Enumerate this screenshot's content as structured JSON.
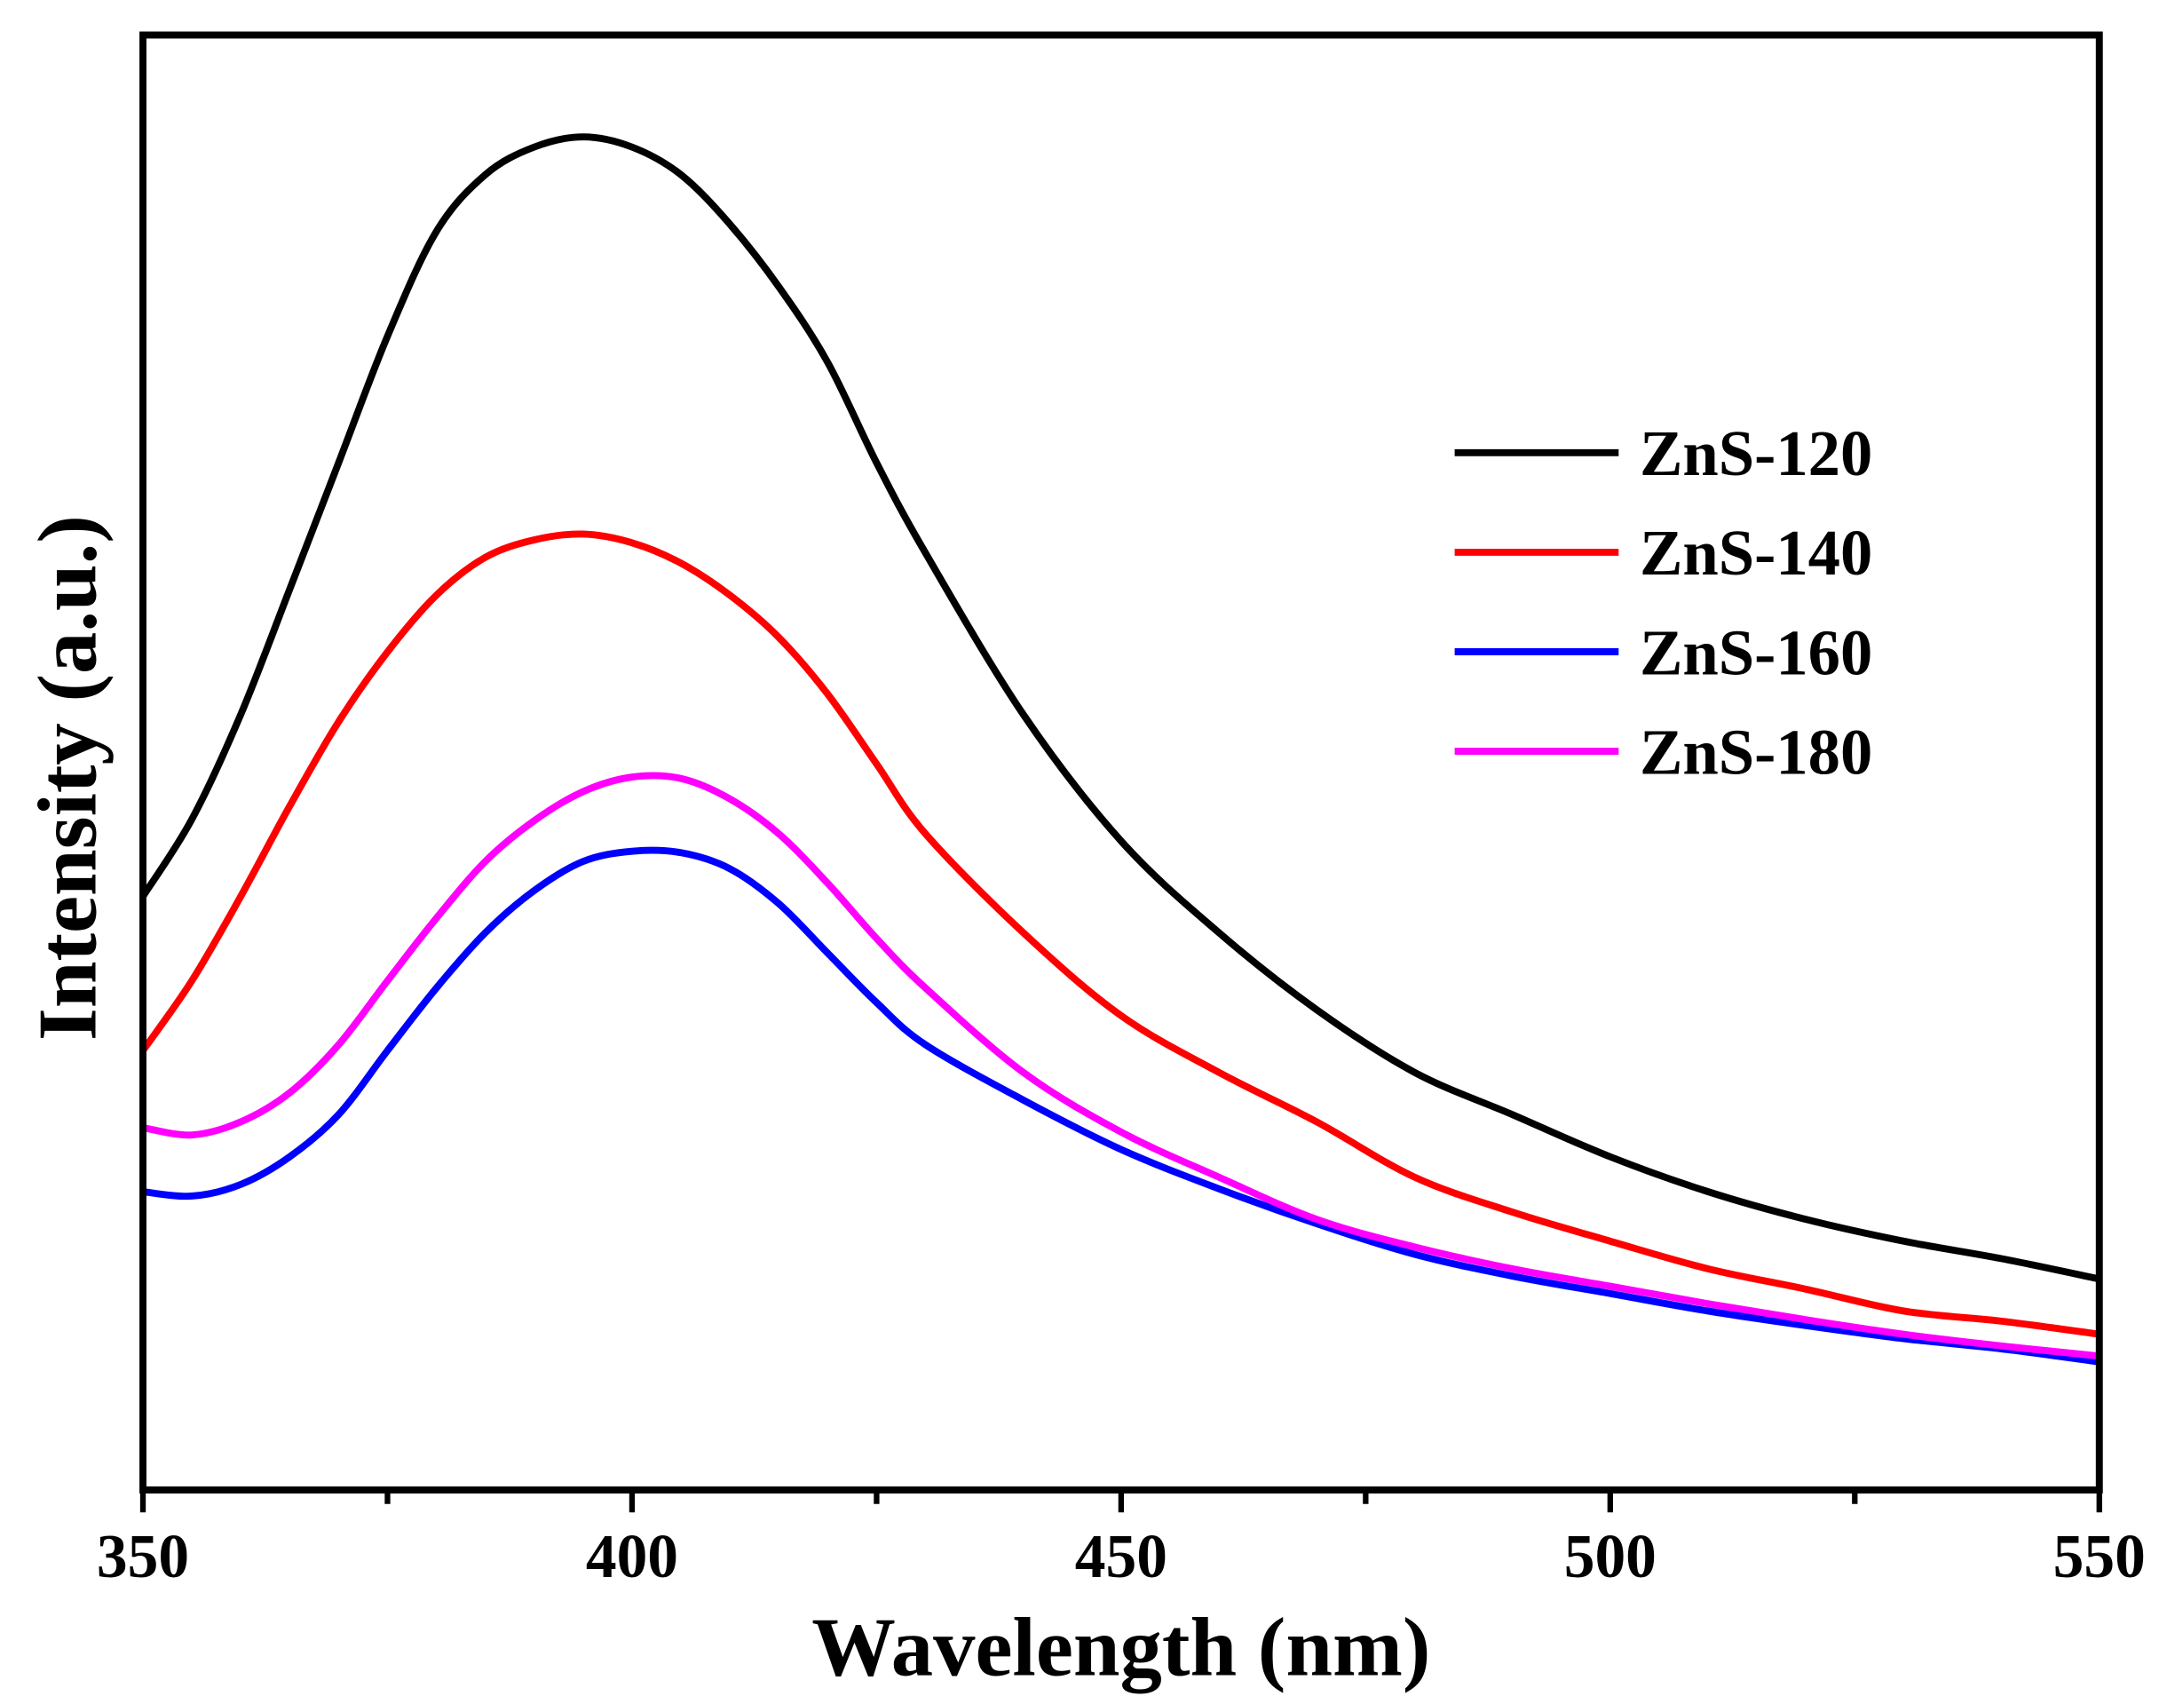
{
  "chart_data": {
    "type": "line",
    "title": "",
    "xlabel": "Wavelength (nm)",
    "ylabel": "Intensity (a.u.)",
    "xlim": [
      350,
      550
    ],
    "ylim": [
      0,
      100
    ],
    "xticks": [
      350,
      400,
      450,
      500,
      550
    ],
    "xminor_ticks": [
      375,
      425,
      475,
      525
    ],
    "grid": false,
    "legend_position": "top-right",
    "x": [
      350,
      355,
      360,
      365,
      370,
      375,
      380,
      385,
      390,
      395,
      400,
      405,
      410,
      415,
      420,
      425,
      430,
      440,
      450,
      460,
      470,
      480,
      490,
      500,
      510,
      520,
      530,
      540,
      550
    ],
    "series": [
      {
        "name": "ZnS-120",
        "color": "#000000",
        "values": [
          40.8,
          46.1,
          53.3,
          61.9,
          70.6,
          79.3,
          86.5,
          90.4,
          92.3,
          93.0,
          92.3,
          90.4,
          87.0,
          82.7,
          77.5,
          70.6,
          64.4,
          53.3,
          44.6,
          38.3,
          33.0,
          28.7,
          25.8,
          22.9,
          20.5,
          18.6,
          17.1,
          15.9,
          14.5
        ]
      },
      {
        "name": "ZnS-140",
        "color": "#ff0000",
        "values": [
          30.2,
          35.0,
          40.8,
          47.0,
          52.8,
          57.6,
          61.5,
          64.1,
          65.3,
          65.7,
          65.1,
          63.7,
          61.5,
          58.6,
          54.7,
          49.9,
          45.1,
          38.3,
          32.6,
          28.7,
          25.3,
          21.5,
          19.1,
          17.1,
          15.2,
          13.8,
          12.3,
          11.6,
          10.7
        ]
      },
      {
        "name": "ZnS-160",
        "color": "#0000ff",
        "values": [
          20.5,
          20.2,
          21.0,
          22.9,
          25.8,
          30.2,
          34.5,
          38.3,
          41.2,
          43.2,
          43.9,
          43.8,
          42.7,
          40.3,
          36.9,
          33.5,
          30.6,
          26.8,
          23.4,
          20.7,
          18.3,
          16.2,
          14.7,
          13.5,
          12.3,
          11.3,
          10.4,
          9.7,
          8.8
        ]
      },
      {
        "name": "ZnS-180",
        "color": "#ff00ff",
        "values": [
          24.9,
          24.4,
          25.3,
          27.3,
          30.6,
          35.0,
          39.3,
          43.2,
          46.0,
          48.0,
          49.0,
          48.9,
          47.5,
          45.1,
          41.7,
          37.9,
          34.5,
          28.7,
          24.6,
          21.5,
          18.6,
          16.7,
          15.2,
          14.0,
          12.8,
          11.7,
          10.7,
          9.9,
          9.2
        ]
      }
    ]
  }
}
